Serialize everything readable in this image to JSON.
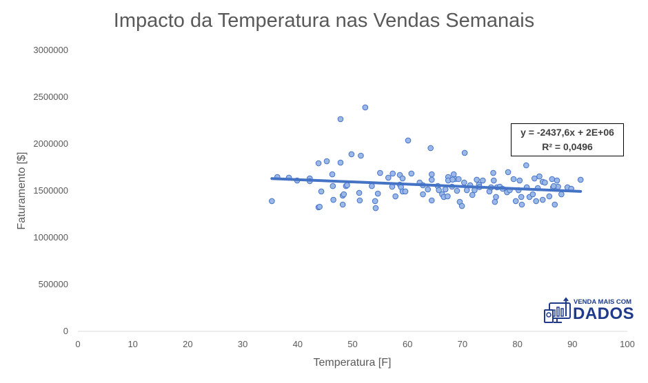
{
  "chart_data": {
    "type": "scatter",
    "title": "Impacto da Temperatura nas Vendas Semanais",
    "xlabel": "Temperatura [F]",
    "ylabel": "Faturamento [$]",
    "xlim": [
      0,
      100
    ],
    "ylim": [
      0,
      3000000
    ],
    "xticks": [
      "0",
      "10",
      "20",
      "30",
      "40",
      "50",
      "60",
      "70",
      "80",
      "90",
      "100"
    ],
    "yticks": [
      "0",
      "500000",
      "1000000",
      "1500000",
      "2000000",
      "2500000",
      "3000000"
    ],
    "grid": false,
    "marker_color": "#9bb8e8",
    "marker_edge_color": "#4472c4",
    "trendline": {
      "type": "linear",
      "slope": -2437.6,
      "intercept": 1717000,
      "color": "#4472c4",
      "equation": "y = -2437,6x + 2E+06",
      "r2": "R² = 0,0496"
    },
    "points": [
      [
        35.3,
        1390000
      ],
      [
        36.3,
        1647000
      ],
      [
        38.4,
        1640000
      ],
      [
        39.9,
        1610000
      ],
      [
        42.2,
        1632000
      ],
      [
        42.2,
        1603000
      ],
      [
        43.8,
        1794000
      ],
      [
        44.3,
        1493000
      ],
      [
        43.8,
        1324000
      ],
      [
        44.0,
        1330000
      ],
      [
        45.3,
        1816000
      ],
      [
        46.3,
        1676000
      ],
      [
        46.4,
        1551000
      ],
      [
        46.5,
        1404000
      ],
      [
        47.8,
        2265000
      ],
      [
        47.8,
        1801000
      ],
      [
        48.2,
        1353000
      ],
      [
        48.2,
        1449000
      ],
      [
        48.4,
        1463000
      ],
      [
        48.8,
        1551000
      ],
      [
        49.0,
        1560000
      ],
      [
        49.8,
        1890000
      ],
      [
        51.5,
        1875000
      ],
      [
        51.2,
        1478000
      ],
      [
        51.3,
        1397000
      ],
      [
        52.3,
        2390000
      ],
      [
        53.5,
        1551000
      ],
      [
        54.1,
        1390000
      ],
      [
        54.2,
        1316000
      ],
      [
        54.6,
        1470000
      ],
      [
        55.0,
        1691000
      ],
      [
        56.5,
        1640000
      ],
      [
        57.3,
        1684000
      ],
      [
        57.2,
        1544000
      ],
      [
        57.8,
        1441000
      ],
      [
        58.6,
        1566000
      ],
      [
        58.6,
        1669000
      ],
      [
        59.1,
        1632000
      ],
      [
        58.8,
        1540000
      ],
      [
        59.1,
        1493000
      ],
      [
        59.6,
        1493000
      ],
      [
        60.1,
        2037000
      ],
      [
        60.7,
        1684000
      ],
      [
        62.2,
        1588000
      ],
      [
        62.8,
        1559000
      ],
      [
        62.8,
        1463000
      ],
      [
        63.7,
        1515000
      ],
      [
        64.2,
        1956000
      ],
      [
        64.4,
        1676000
      ],
      [
        64.4,
        1618000
      ],
      [
        64.4,
        1397000
      ],
      [
        65.5,
        1551000
      ],
      [
        65.7,
        1507000
      ],
      [
        66.3,
        1463000
      ],
      [
        66.6,
        1434000
      ],
      [
        66.9,
        1515000
      ],
      [
        67.3,
        1441000
      ],
      [
        67.4,
        1647000
      ],
      [
        67.4,
        1610000
      ],
      [
        68.1,
        1544000
      ],
      [
        68.4,
        1676000
      ],
      [
        68.7,
        1625000
      ],
      [
        69.0,
        1500000
      ],
      [
        69.3,
        1625000
      ],
      [
        69.5,
        1382000
      ],
      [
        69.9,
        1338000
      ],
      [
        70.3,
        1588000
      ],
      [
        70.4,
        1905000
      ],
      [
        70.8,
        1507000
      ],
      [
        71.4,
        1559000
      ],
      [
        71.8,
        1456000
      ],
      [
        72.2,
        1507000
      ],
      [
        72.6,
        1618000
      ],
      [
        73.0,
        1566000
      ],
      [
        73.7,
        1610000
      ],
      [
        74.9,
        1493000
      ],
      [
        75.2,
        1537000
      ],
      [
        75.6,
        1691000
      ],
      [
        75.7,
        1610000
      ],
      [
        75.9,
        1382000
      ],
      [
        76.1,
        1434000
      ],
      [
        76.3,
        1537000
      ],
      [
        76.8,
        1544000
      ],
      [
        77.3,
        1522000
      ],
      [
        78.1,
        1485000
      ],
      [
        78.3,
        1699000
      ],
      [
        78.6,
        1507000
      ],
      [
        79.3,
        1625000
      ],
      [
        79.7,
        1390000
      ],
      [
        80.2,
        1507000
      ],
      [
        80.4,
        1610000
      ],
      [
        80.7,
        1434000
      ],
      [
        80.8,
        1353000
      ],
      [
        81.6,
        1772000
      ],
      [
        81.7,
        1537000
      ],
      [
        82.2,
        1434000
      ],
      [
        82.8,
        1463000
      ],
      [
        83.1,
        1632000
      ],
      [
        83.4,
        1390000
      ],
      [
        83.7,
        1529000
      ],
      [
        84.0,
        1654000
      ],
      [
        84.6,
        1404000
      ],
      [
        84.6,
        1596000
      ],
      [
        85.0,
        1588000
      ],
      [
        85.8,
        1441000
      ],
      [
        86.3,
        1625000
      ],
      [
        86.5,
        1537000
      ],
      [
        86.8,
        1353000
      ],
      [
        87.2,
        1610000
      ],
      [
        87.4,
        1544000
      ],
      [
        88.0,
        1463000
      ],
      [
        89.1,
        1537000
      ],
      [
        89.8,
        1522000
      ],
      [
        91.5,
        1618000
      ],
      [
        68.2,
        1620000
      ],
      [
        73.1,
        1540000
      ],
      [
        86.6,
        1550000
      ]
    ]
  },
  "logo": {
    "line1": "VENDA MAIS COM",
    "line2": "DADOS",
    "color": "#1f3a8a"
  }
}
